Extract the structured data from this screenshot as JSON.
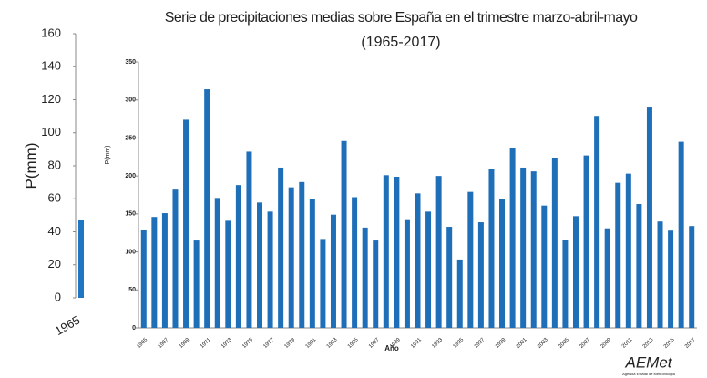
{
  "chart_data": [
    {
      "type": "bar",
      "ylabel": "P(mm)",
      "categories": [
        "1965"
      ],
      "values": [
        47
      ],
      "color": "#1f77c4",
      "ylim": [
        0,
        160
      ],
      "yticks": [
        0,
        20,
        40,
        60,
        80,
        100,
        120,
        140,
        160
      ],
      "grid": false
    },
    {
      "type": "bar",
      "title": "Serie de precipitaciones medias sobre España en el trimestre marzo-abril-mayo",
      "subtitle": "(1965-2017)",
      "xlabel": "Año",
      "ylabel": "P(mm)",
      "color": "#1f6fb8",
      "categories": [
        "1965",
        null,
        "1967",
        null,
        "1969",
        null,
        "1971",
        null,
        "1973",
        null,
        "1975",
        null,
        "1977",
        null,
        "1979",
        null,
        "1981",
        null,
        "1983",
        null,
        "1985",
        null,
        "1987",
        null,
        "1989",
        null,
        "1991",
        null,
        "1993",
        null,
        "1995",
        null,
        "1997",
        null,
        "1999",
        null,
        "2001",
        null,
        "2003",
        null,
        "2005",
        null,
        "2007",
        null,
        "2009",
        null,
        "2011",
        null,
        "2013",
        null,
        "2015",
        null,
        "2017"
      ],
      "values": [
        129,
        146,
        151,
        182,
        274,
        115,
        314,
        171,
        141,
        188,
        232,
        165,
        153,
        211,
        185,
        192,
        169,
        117,
        149,
        246,
        172,
        132,
        115,
        201,
        199,
        143,
        177,
        153,
        200,
        133,
        90,
        179,
        139,
        209,
        169,
        237,
        211,
        206,
        161,
        224,
        116,
        147,
        227,
        279,
        131,
        191,
        203,
        163,
        290,
        140,
        128,
        245,
        134
      ],
      "ylim": [
        0,
        350
      ],
      "yticks": [
        0,
        50,
        100,
        150,
        200,
        250,
        300,
        350
      ],
      "grid": false
    },
    {
      "logo": "AEMet",
      "logo_subtitle": "Agencia Estatal de Meteorología"
    }
  ]
}
